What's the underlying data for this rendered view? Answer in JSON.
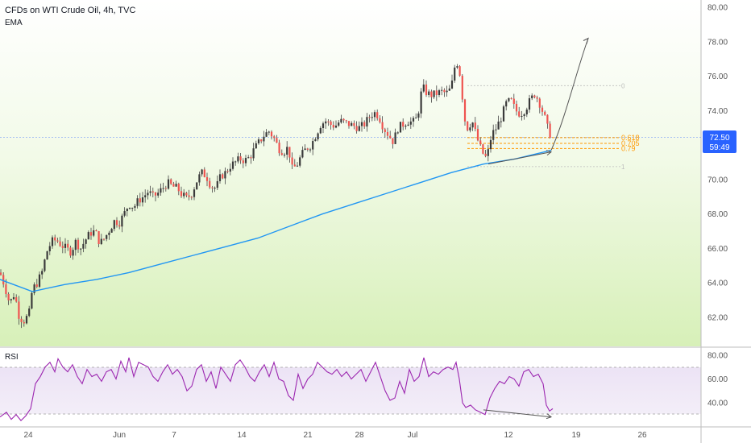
{
  "header": {
    "title": "CFDs on WTI Crude Oil, 4h, TVC",
    "indicator": "EMA"
  },
  "price_badge": {
    "price": "72.50",
    "countdown": "59:49"
  },
  "rsi_panel": {
    "title": "RSI"
  },
  "colors": {
    "up": "#26a69a",
    "down": "#ef5350",
    "candle": "#555555",
    "ema": "#2196f3",
    "rsi": "#9c27b0",
    "fib": "#ff9800",
    "badge": "#2962ff",
    "background_green": "#d7f0b8",
    "grid_text": "#555555"
  },
  "chart_data": [
    {
      "type": "candlestick",
      "title": "CFDs on WTI Crude Oil, 4h, TVC",
      "y_ticks": [
        "80.00",
        "78.00",
        "76.00",
        "74.00",
        "72.00",
        "70.00",
        "68.00",
        "66.00",
        "64.00",
        "62.00"
      ],
      "x_ticks": [
        "24",
        "Jun",
        "7",
        "14",
        "21",
        "28",
        "Jul",
        "12",
        "19",
        "26"
      ],
      "ylim": [
        61.0,
        80.4
      ],
      "last_price": 72.5,
      "fib_levels": [
        {
          "label": "0.618",
          "value": 72.43
        },
        {
          "label": "0.705",
          "value": 72.1
        },
        {
          "label": "0.79",
          "value": 71.8
        }
      ],
      "fib_range_labels": {
        "top": "0",
        "bottom": "1"
      },
      "fib_range": [
        75.45,
        70.75
      ],
      "price_path": [
        [
          0,
          64.6
        ],
        [
          6,
          63.8
        ],
        [
          12,
          62.8
        ],
        [
          18,
          63.4
        ],
        [
          24,
          62.0
        ],
        [
          30,
          61.8
        ],
        [
          36,
          62.2
        ],
        [
          40,
          63.6
        ],
        [
          46,
          64.0
        ],
        [
          52,
          64.6
        ],
        [
          58,
          65.8
        ],
        [
          64,
          66.4
        ],
        [
          70,
          66.5
        ],
        [
          76,
          66.2
        ],
        [
          82,
          66.0
        ],
        [
          88,
          65.8
        ],
        [
          94,
          66.4
        ],
        [
          100,
          66.0
        ],
        [
          106,
          66.5
        ],
        [
          112,
          66.9
        ],
        [
          118,
          67.0
        ],
        [
          124,
          66.3
        ],
        [
          130,
          66.6
        ],
        [
          136,
          67.1
        ],
        [
          142,
          67.6
        ],
        [
          148,
          67.5
        ],
        [
          154,
          68.0
        ],
        [
          160,
          68.6
        ],
        [
          166,
          68.4
        ],
        [
          172,
          68.8
        ],
        [
          178,
          69.0
        ],
        [
          184,
          69.3
        ],
        [
          190,
          69.0
        ],
        [
          196,
          69.2
        ],
        [
          202,
          69.5
        ],
        [
          208,
          69.8
        ],
        [
          214,
          69.6
        ],
        [
          220,
          69.5
        ],
        [
          226,
          69.1
        ],
        [
          232,
          68.9
        ],
        [
          238,
          69.2
        ],
        [
          244,
          69.9
        ],
        [
          250,
          70.4
        ],
        [
          256,
          70.2
        ],
        [
          262,
          69.6
        ],
        [
          268,
          69.5
        ],
        [
          274,
          70.2
        ],
        [
          280,
          70.4
        ],
        [
          286,
          70.8
        ],
        [
          292,
          71.0
        ],
        [
          298,
          71.2
        ],
        [
          304,
          71.1
        ],
        [
          310,
          71.3
        ],
        [
          316,
          71.8
        ],
        [
          322,
          72.2
        ],
        [
          328,
          72.6
        ],
        [
          334,
          72.8
        ],
        [
          340,
          72.4
        ],
        [
          346,
          71.8
        ],
        [
          352,
          71.6
        ],
        [
          358,
          71.9
        ],
        [
          362,
          70.6
        ],
        [
          368,
          70.8
        ],
        [
          374,
          71.4
        ],
        [
          380,
          71.8
        ],
        [
          386,
          72.0
        ],
        [
          392,
          72.6
        ],
        [
          398,
          73.2
        ],
        [
          404,
          73.4
        ],
        [
          410,
          73.2
        ],
        [
          416,
          73.1
        ],
        [
          422,
          73.4
        ],
        [
          428,
          73.3
        ],
        [
          434,
          73.2
        ],
        [
          440,
          73.1
        ],
        [
          446,
          73.0
        ],
        [
          452,
          73.2
        ],
        [
          458,
          73.6
        ],
        [
          464,
          73.9
        ],
        [
          470,
          73.7
        ],
        [
          476,
          73.0
        ],
        [
          482,
          72.6
        ],
        [
          488,
          72.2
        ],
        [
          494,
          73.0
        ],
        [
          500,
          73.2
        ],
        [
          506,
          73.4
        ],
        [
          512,
          73.3
        ],
        [
          518,
          73.6
        ],
        [
          524,
          75.4
        ],
        [
          530,
          75.0
        ],
        [
          536,
          74.9
        ],
        [
          542,
          75.0
        ],
        [
          548,
          75.1
        ],
        [
          554,
          75.0
        ],
        [
          560,
          75.3
        ],
        [
          564,
          76.5
        ],
        [
          568,
          76.8
        ],
        [
          572,
          75.8
        ],
        [
          576,
          73.6
        ],
        [
          580,
          73.0
        ],
        [
          586,
          73.4
        ],
        [
          592,
          72.4
        ],
        [
          598,
          71.6
        ],
        [
          604,
          71.2
        ],
        [
          610,
          72.6
        ],
        [
          616,
          73.0
        ],
        [
          622,
          73.6
        ],
        [
          628,
          74.4
        ],
        [
          634,
          74.6
        ],
        [
          640,
          74.0
        ],
        [
          646,
          73.8
        ],
        [
          652,
          74.1
        ],
        [
          658,
          74.6
        ],
        [
          664,
          75.0
        ],
        [
          670,
          74.4
        ],
        [
          676,
          73.6
        ],
        [
          680,
          72.9
        ],
        [
          684,
          72.5
        ]
      ],
      "ema_path": [
        [
          0,
          64.2
        ],
        [
          40,
          63.5
        ],
        [
          80,
          63.9
        ],
        [
          120,
          64.2
        ],
        [
          160,
          64.6
        ],
        [
          200,
          65.1
        ],
        [
          240,
          65.6
        ],
        [
          280,
          66.1
        ],
        [
          320,
          66.6
        ],
        [
          360,
          67.3
        ],
        [
          400,
          68.0
        ],
        [
          440,
          68.6
        ],
        [
          480,
          69.2
        ],
        [
          520,
          69.8
        ],
        [
          560,
          70.4
        ],
        [
          600,
          70.9
        ],
        [
          640,
          71.2
        ],
        [
          684,
          71.7
        ]
      ],
      "projection_path": [
        [
          684,
          71.7
        ],
        [
          702,
          73.6
        ],
        [
          716,
          76.4
        ],
        [
          730,
          78.2
        ]
      ],
      "ema_divergence_line": [
        [
          606,
          70.9
        ],
        [
          684,
          71.6
        ]
      ],
      "ema_band_line": [
        [
          580,
          71.55
        ],
        [
          780,
          71.55
        ]
      ]
    },
    {
      "type": "line",
      "title": "RSI",
      "y_ticks": [
        "80.00",
        "60.00",
        "40.00"
      ],
      "ylim": [
        25,
        83
      ],
      "overbought": 70,
      "oversold": 30,
      "rsi_path": [
        [
          0,
          28
        ],
        [
          8,
          32
        ],
        [
          14,
          26
        ],
        [
          20,
          30
        ],
        [
          26,
          25
        ],
        [
          32,
          29
        ],
        [
          38,
          35
        ],
        [
          44,
          56
        ],
        [
          50,
          62
        ],
        [
          56,
          70
        ],
        [
          62,
          74
        ],
        [
          68,
          66
        ],
        [
          72,
          77
        ],
        [
          78,
          70
        ],
        [
          84,
          66
        ],
        [
          90,
          72
        ],
        [
          96,
          62
        ],
        [
          102,
          56
        ],
        [
          108,
          68
        ],
        [
          114,
          62
        ],
        [
          120,
          64
        ],
        [
          126,
          58
        ],
        [
          132,
          66
        ],
        [
          138,
          68
        ],
        [
          144,
          60
        ],
        [
          150,
          75
        ],
        [
          156,
          66
        ],
        [
          160,
          78
        ],
        [
          166,
          62
        ],
        [
          172,
          74
        ],
        [
          178,
          72
        ],
        [
          184,
          70
        ],
        [
          190,
          62
        ],
        [
          196,
          58
        ],
        [
          202,
          66
        ],
        [
          208,
          72
        ],
        [
          214,
          64
        ],
        [
          220,
          68
        ],
        [
          226,
          62
        ],
        [
          232,
          50
        ],
        [
          238,
          54
        ],
        [
          244,
          68
        ],
        [
          250,
          72
        ],
        [
          256,
          58
        ],
        [
          262,
          66
        ],
        [
          268,
          52
        ],
        [
          274,
          70
        ],
        [
          280,
          64
        ],
        [
          286,
          58
        ],
        [
          292,
          72
        ],
        [
          298,
          76
        ],
        [
          304,
          70
        ],
        [
          310,
          62
        ],
        [
          316,
          58
        ],
        [
          322,
          66
        ],
        [
          328,
          72
        ],
        [
          334,
          62
        ],
        [
          340,
          74
        ],
        [
          346,
          60
        ],
        [
          352,
          58
        ],
        [
          358,
          46
        ],
        [
          364,
          42
        ],
        [
          370,
          64
        ],
        [
          376,
          52
        ],
        [
          382,
          60
        ],
        [
          388,
          64
        ],
        [
          394,
          74
        ],
        [
          400,
          70
        ],
        [
          406,
          66
        ],
        [
          412,
          64
        ],
        [
          418,
          68
        ],
        [
          424,
          62
        ],
        [
          430,
          66
        ],
        [
          436,
          60
        ],
        [
          442,
          64
        ],
        [
          448,
          68
        ],
        [
          454,
          58
        ],
        [
          460,
          66
        ],
        [
          466,
          74
        ],
        [
          472,
          62
        ],
        [
          478,
          50
        ],
        [
          484,
          42
        ],
        [
          490,
          44
        ],
        [
          496,
          58
        ],
        [
          502,
          48
        ],
        [
          508,
          68
        ],
        [
          514,
          58
        ],
        [
          520,
          62
        ],
        [
          526,
          78
        ],
        [
          532,
          62
        ],
        [
          538,
          66
        ],
        [
          544,
          64
        ],
        [
          550,
          68
        ],
        [
          556,
          70
        ],
        [
          562,
          68
        ],
        [
          566,
          74
        ],
        [
          570,
          60
        ],
        [
          574,
          40
        ],
        [
          578,
          36
        ],
        [
          584,
          38
        ],
        [
          590,
          34
        ],
        [
          596,
          32
        ],
        [
          602,
          30
        ],
        [
          608,
          44
        ],
        [
          614,
          52
        ],
        [
          620,
          58
        ],
        [
          626,
          56
        ],
        [
          632,
          62
        ],
        [
          638,
          60
        ],
        [
          644,
          54
        ],
        [
          650,
          66
        ],
        [
          656,
          68
        ],
        [
          662,
          62
        ],
        [
          668,
          64
        ],
        [
          674,
          56
        ],
        [
          678,
          38
        ],
        [
          682,
          33
        ],
        [
          686,
          35
        ]
      ],
      "divergence_line": [
        [
          600,
          34
        ],
        [
          684,
          28
        ]
      ]
    }
  ]
}
